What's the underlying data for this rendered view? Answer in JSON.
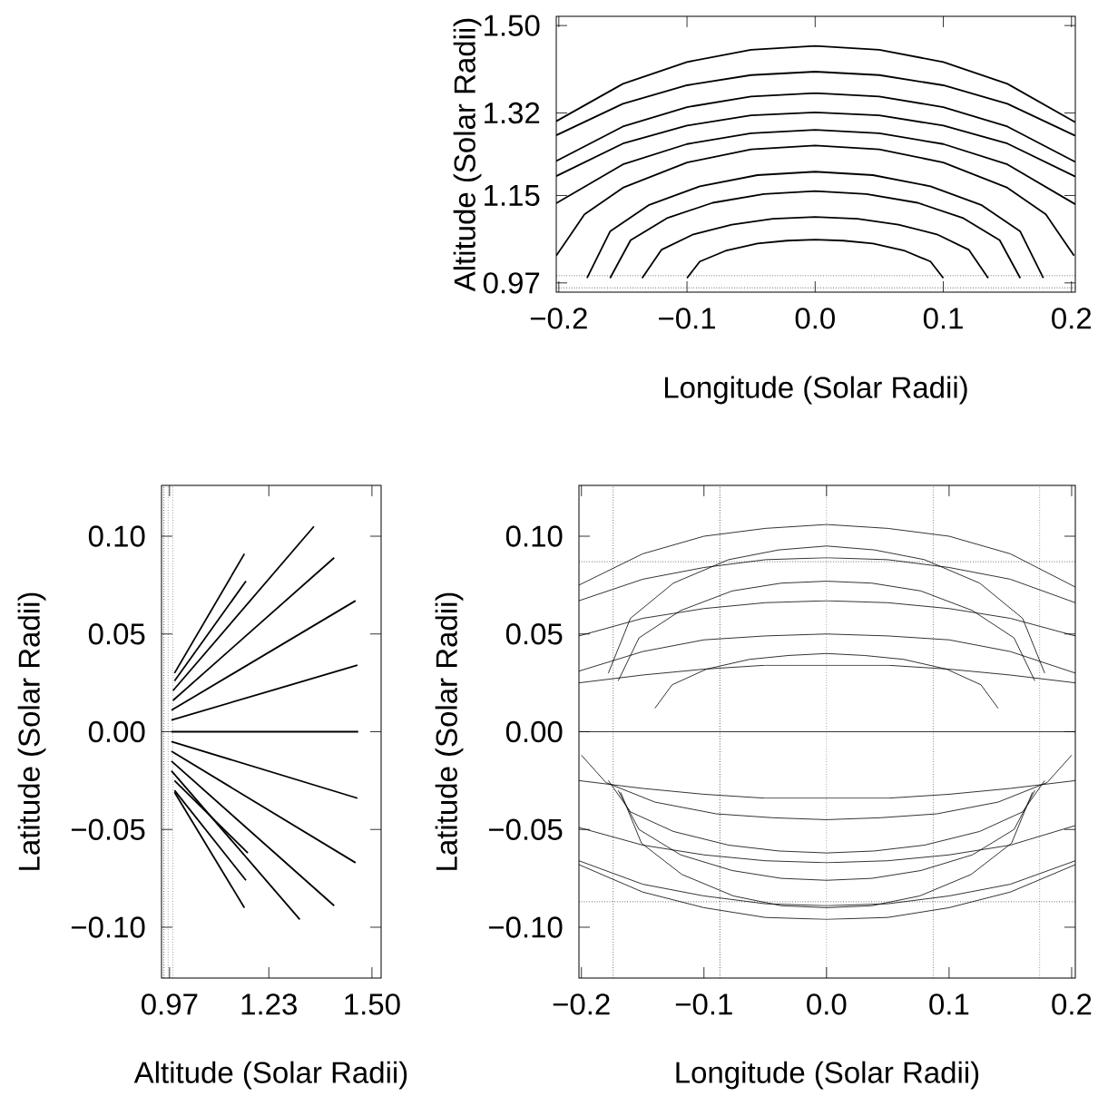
{
  "chart_data": [
    {
      "type": "line",
      "xlabel": "Longitude (Solar Radii)",
      "ylabel": "Altitude (Solar Radii)",
      "marker": "none",
      "line_style": "solid",
      "xlim": [
        -0.202,
        0.203
      ],
      "ylim": [
        0.951,
        1.519
      ],
      "xticks": [
        {
          "value": -0.2,
          "label": "−0.2"
        },
        {
          "value": -0.1,
          "label": "−0.1"
        },
        {
          "value": 0,
          "label": "0.0"
        },
        0.1,
        0.2
      ],
      "yticks": [
        0.97,
        1.15,
        1.32,
        {
          "value": 1.5,
          "label": "1.50"
        }
      ],
      "ref_lines": [
        {
          "axis": "y",
          "value": 0.985,
          "line_style": "dotted"
        },
        {
          "axis": "y",
          "value": 0.96,
          "line_style": "dotted"
        }
      ],
      "series": [
        {
          "color": "#000000",
          "x": [
            -0.202,
            -0.15,
            -0.1,
            -0.05,
            0,
            0.05,
            0.1,
            0.15,
            0.203
          ],
          "values": [
            1.303,
            1.38,
            1.425,
            1.45,
            1.458,
            1.45,
            1.425,
            1.38,
            1.301
          ]
        },
        {
          "color": "#000000",
          "x": [
            -0.202,
            -0.15,
            -0.1,
            -0.05,
            0,
            0.05,
            0.1,
            0.15,
            0.203
          ],
          "values": [
            1.274,
            1.339,
            1.377,
            1.398,
            1.405,
            1.398,
            1.377,
            1.339,
            1.273
          ]
        },
        {
          "color": "#000000",
          "x": [
            -0.202,
            -0.15,
            -0.1,
            -0.05,
            0,
            0.05,
            0.1,
            0.15,
            0.203
          ],
          "values": [
            1.221,
            1.292,
            1.332,
            1.354,
            1.361,
            1.354,
            1.332,
            1.292,
            1.219
          ]
        },
        {
          "color": "#000000",
          "x": [
            -0.202,
            -0.15,
            -0.1,
            -0.05,
            0,
            0.05,
            0.1,
            0.15,
            0.203
          ],
          "values": [
            1.19,
            1.257,
            1.294,
            1.315,
            1.321,
            1.315,
            1.294,
            1.257,
            1.189
          ]
        },
        {
          "color": "#000000",
          "x": [
            -0.202,
            -0.15,
            -0.1,
            -0.05,
            0,
            0.05,
            0.1,
            0.15,
            0.203
          ],
          "values": [
            1.134,
            1.214,
            1.256,
            1.278,
            1.285,
            1.278,
            1.256,
            1.214,
            1.132
          ]
        },
        {
          "color": "#000000",
          "x": [
            -0.202,
            -0.18,
            -0.15,
            -0.1,
            -0.05,
            0,
            0.05,
            0.1,
            0.15,
            0.18,
            0.202
          ],
          "values": [
            1.026,
            1.111,
            1.166,
            1.218,
            1.245,
            1.253,
            1.245,
            1.218,
            1.166,
            1.111,
            1.026
          ]
        },
        {
          "color": "#000000",
          "x": [
            -0.178,
            -0.16,
            -0.13,
            -0.09,
            -0.045,
            0,
            0.045,
            0.09,
            0.13,
            0.16,
            0.178
          ],
          "values": [
            0.98,
            1.076,
            1.13,
            1.169,
            1.192,
            1.199,
            1.192,
            1.169,
            1.13,
            1.076,
            0.98
          ]
        },
        {
          "color": "#000000",
          "x": [
            -0.16,
            -0.144,
            -0.115,
            -0.08,
            -0.04,
            0,
            0.04,
            0.08,
            0.115,
            0.144,
            0.16
          ],
          "values": [
            0.98,
            1.058,
            1.104,
            1.135,
            1.153,
            1.159,
            1.153,
            1.135,
            1.104,
            1.058,
            0.98
          ]
        },
        {
          "color": "#000000",
          "x": [
            -0.135,
            -0.12,
            -0.095,
            -0.065,
            -0.033,
            0,
            0.033,
            0.065,
            0.095,
            0.12,
            0.135
          ],
          "values": [
            0.98,
            1.038,
            1.07,
            1.09,
            1.102,
            1.106,
            1.102,
            1.09,
            1.07,
            1.038,
            0.98
          ]
        },
        {
          "color": "#000000",
          "x": [
            -0.1,
            -0.09,
            -0.07,
            -0.045,
            -0.022,
            0,
            0.022,
            0.045,
            0.07,
            0.09,
            0.1
          ],
          "values": [
            0.98,
            1.014,
            1.036,
            1.051,
            1.057,
            1.059,
            1.057,
            1.051,
            1.036,
            1.014,
            0.98
          ]
        }
      ]
    },
    {
      "type": "line",
      "xlabel": "Altitude (Solar Radii)",
      "ylabel": "Latitude (Solar Radii)",
      "marker": "none",
      "line_style": "solid",
      "xlim": [
        0.949,
        1.524
      ],
      "ylim": [
        -0.126,
        0.126
      ],
      "xticks": [
        0.97,
        1.23,
        {
          "value": 1.5,
          "label": "1.50"
        }
      ],
      "yticks": [
        {
          "value": 0.1,
          "label": "0.10"
        },
        0.05,
        {
          "value": 0,
          "label": "0.00"
        },
        {
          "value": -0.05,
          "label": "−0.05"
        },
        {
          "value": -0.1,
          "label": "−0.10"
        }
      ],
      "ref_lines": [
        {
          "axis": "x",
          "value": 0.955,
          "line_style": "dotted"
        },
        {
          "axis": "x",
          "value": 0.966,
          "line_style": "dotted"
        },
        {
          "axis": "x",
          "value": 0.978,
          "line_style": "dotted"
        }
      ],
      "series": [
        {
          "color": "#000000",
          "x": [
            0.983,
            1.166
          ],
          "values": [
            0.03,
            0.091
          ]
        },
        {
          "color": "#000000",
          "x": [
            0.983,
            1.17
          ],
          "values": [
            0.026,
            0.077
          ]
        },
        {
          "color": "#000000",
          "x": [
            0.979,
            1.348
          ],
          "values": [
            0.021,
            0.105
          ]
        },
        {
          "color": "#000000",
          "x": [
            0.979,
            1.401
          ],
          "values": [
            0.016,
            0.089
          ]
        },
        {
          "color": "#000000",
          "x": [
            0.975,
            1.457
          ],
          "values": [
            0.011,
            0.067
          ]
        },
        {
          "color": "#000000",
          "x": [
            0.975,
            1.462
          ],
          "values": [
            0.006,
            0.034
          ]
        },
        {
          "color": "#000000",
          "x": [
            0.975,
            1.464
          ],
          "values": [
            0,
            0
          ]
        },
        {
          "color": "#000000",
          "x": [
            0.975,
            1.462
          ],
          "values": [
            -0.005,
            -0.034
          ]
        },
        {
          "color": "#000000",
          "x": [
            0.975,
            1.457
          ],
          "values": [
            -0.01,
            -0.067
          ]
        },
        {
          "color": "#000000",
          "x": [
            0.975,
            1.401
          ],
          "values": [
            -0.015,
            -0.089
          ]
        },
        {
          "color": "#000000",
          "x": [
            0.975,
            1.311
          ],
          "values": [
            -0.02,
            -0.096
          ]
        },
        {
          "color": "#000000",
          "x": [
            0.983,
            1.175
          ],
          "values": [
            -0.025,
            -0.062
          ]
        },
        {
          "color": "#000000",
          "x": [
            0.983,
            1.17
          ],
          "values": [
            -0.03,
            -0.076
          ]
        },
        {
          "color": "#000000",
          "x": [
            0.983,
            1.166
          ],
          "values": [
            -0.031,
            -0.09
          ]
        }
      ]
    },
    {
      "type": "line",
      "xlabel": "Longitude (Solar Radii)",
      "ylabel": "Latitude (Solar Radii)",
      "marker": "none",
      "line_style": "solid",
      "xlim": [
        -0.202,
        0.203
      ],
      "ylim": [
        -0.126,
        0.126
      ],
      "xticks": [
        {
          "value": -0.2,
          "label": "−0.2"
        },
        {
          "value": -0.1,
          "label": "−0.1"
        },
        {
          "value": 0,
          "label": "0.0"
        },
        0.1,
        0.2
      ],
      "yticks": [
        {
          "value": 0.1,
          "label": "0.10"
        },
        0.05,
        {
          "value": 0,
          "label": "0.00"
        },
        {
          "value": -0.05,
          "label": "−0.05"
        },
        {
          "value": -0.1,
          "label": "−0.10"
        }
      ],
      "ref_lines": [
        {
          "axis": "x",
          "value": -0.174,
          "line_style": "dotted"
        },
        {
          "axis": "x",
          "value": -0.087,
          "line_style": "dotted"
        },
        {
          "axis": "x",
          "value": 0,
          "line_style": "dotted"
        },
        {
          "axis": "x",
          "value": 0.087,
          "line_style": "dotted"
        },
        {
          "axis": "x",
          "value": 0.174,
          "line_style": "dotted"
        },
        {
          "axis": "y",
          "value": 0.087,
          "line_style": "dotted"
        },
        {
          "axis": "y",
          "value": -0.087,
          "line_style": "dotted"
        }
      ],
      "series": [
        {
          "color": "#000000",
          "x": [
            -0.202,
            -0.15,
            -0.1,
            -0.05,
            0,
            0.05,
            0.1,
            0.15,
            0.203
          ],
          "values": [
            0.075,
            0.091,
            0.1,
            0.104,
            0.106,
            0.104,
            0.1,
            0.091,
            0.074
          ]
        },
        {
          "color": "#000000",
          "x": [
            -0.202,
            -0.15,
            -0.1,
            -0.05,
            0,
            0.05,
            0.1,
            0.15,
            0.203
          ],
          "values": [
            0.067,
            0.078,
            0.084,
            0.088,
            0.089,
            0.088,
            0.084,
            0.078,
            0.066
          ]
        },
        {
          "color": "#000000",
          "x": [
            -0.202,
            -0.15,
            -0.1,
            -0.05,
            0,
            0.05,
            0.1,
            0.15,
            0.203
          ],
          "values": [
            0.049,
            0.058,
            0.063,
            0.066,
            0.067,
            0.066,
            0.063,
            0.058,
            0.049
          ]
        },
        {
          "color": "#000000",
          "x": [
            -0.202,
            -0.15,
            -0.1,
            -0.05,
            0,
            0.05,
            0.1,
            0.15,
            0.203
          ],
          "values": [
            0.025,
            0.029,
            0.032,
            0.034,
            0.034,
            0.034,
            0.032,
            0.029,
            0.025
          ]
        },
        {
          "color": "#000000",
          "x": [
            -0.178,
            -0.16,
            -0.125,
            -0.08,
            -0.039,
            0,
            0.039,
            0.08,
            0.125,
            0.16,
            0.178
          ],
          "values": [
            0.03,
            0.058,
            0.076,
            0.088,
            0.093,
            0.095,
            0.093,
            0.088,
            0.076,
            0.058,
            0.03
          ]
        },
        {
          "color": "#000000",
          "x": [
            -0.17,
            -0.153,
            -0.119,
            -0.077,
            -0.037,
            0,
            0.037,
            0.077,
            0.119,
            0.153,
            0.17
          ],
          "values": [
            0.026,
            0.048,
            0.062,
            0.072,
            0.076,
            0.077,
            0.076,
            0.072,
            0.062,
            0.048,
            0.026
          ]
        },
        {
          "color": "#000000",
          "x": [
            -0.202,
            -0.15,
            -0.1,
            -0.05,
            0,
            0.05,
            0.1,
            0.15,
            0.203
          ],
          "values": [
            0.031,
            0.041,
            0.047,
            0.049,
            0.05,
            0.049,
            0.047,
            0.041,
            0.03
          ]
        },
        {
          "color": "#000000",
          "x": [
            -0.14,
            -0.126,
            -0.098,
            -0.063,
            -0.031,
            0,
            0.031,
            0.063,
            0.098,
            0.126,
            0.14
          ],
          "values": [
            0.012,
            0.024,
            0.032,
            0.037,
            0.039,
            0.04,
            0.039,
            0.037,
            0.032,
            0.024,
            0.012
          ]
        },
        {
          "color": "#000000",
          "x": [
            -0.202,
            0.203
          ],
          "values": [
            0,
            0
          ]
        },
        {
          "color": "#000000",
          "x": [
            -0.202,
            -0.15,
            -0.1,
            -0.05,
            0,
            0.05,
            0.1,
            0.15,
            0.203
          ],
          "values": [
            -0.025,
            -0.029,
            -0.032,
            -0.034,
            -0.034,
            -0.034,
            -0.032,
            -0.029,
            -0.025
          ]
        },
        {
          "color": "#000000",
          "x": [
            -0.202,
            -0.15,
            -0.1,
            -0.05,
            0,
            0.05,
            0.1,
            0.15,
            0.203
          ],
          "values": [
            -0.049,
            -0.058,
            -0.063,
            -0.066,
            -0.067,
            -0.066,
            -0.063,
            -0.058,
            -0.048
          ]
        },
        {
          "color": "#000000",
          "x": [
            -0.202,
            -0.15,
            -0.1,
            -0.05,
            0,
            0.05,
            0.1,
            0.15,
            0.203
          ],
          "values": [
            -0.066,
            -0.078,
            -0.084,
            -0.088,
            -0.089,
            -0.088,
            -0.084,
            -0.078,
            -0.066
          ]
        },
        {
          "color": "#000000",
          "x": [
            -0.202,
            -0.15,
            -0.1,
            -0.05,
            0,
            0.05,
            0.1,
            0.15,
            0.203
          ],
          "values": [
            -0.068,
            -0.082,
            -0.09,
            -0.095,
            -0.096,
            -0.095,
            -0.09,
            -0.082,
            -0.068
          ]
        },
        {
          "color": "#000000",
          "x": [
            -0.178,
            -0.16,
            -0.125,
            -0.08,
            -0.039,
            0,
            0.039,
            0.08,
            0.125,
            0.16,
            0.178
          ],
          "values": [
            -0.025,
            -0.041,
            -0.051,
            -0.058,
            -0.061,
            -0.062,
            -0.061,
            -0.058,
            -0.051,
            -0.041,
            -0.025
          ]
        },
        {
          "color": "#000000",
          "x": [
            -0.17,
            -0.153,
            -0.119,
            -0.077,
            -0.037,
            0,
            0.037,
            0.077,
            0.119,
            0.153,
            0.17
          ],
          "values": [
            -0.03,
            -0.05,
            -0.063,
            -0.071,
            -0.075,
            -0.076,
            -0.075,
            -0.071,
            -0.063,
            -0.05,
            -0.03
          ]
        },
        {
          "color": "#000000",
          "x": [
            -0.168,
            -0.151,
            -0.118,
            -0.076,
            -0.037,
            0,
            0.037,
            0.076,
            0.118,
            0.151,
            0.168
          ],
          "values": [
            -0.031,
            -0.057,
            -0.073,
            -0.084,
            -0.089,
            -0.09,
            -0.089,
            -0.084,
            -0.073,
            -0.057,
            -0.031
          ]
        },
        {
          "color": "#000000",
          "x": [
            -0.2,
            -0.18,
            -0.14,
            -0.09,
            -0.044,
            0,
            0.044,
            0.09,
            0.14,
            0.18,
            0.2
          ],
          "values": [
            -0.012,
            -0.026,
            -0.036,
            -0.042,
            -0.044,
            -0.045,
            -0.044,
            -0.042,
            -0.036,
            -0.026,
            -0.012
          ]
        }
      ]
    }
  ]
}
